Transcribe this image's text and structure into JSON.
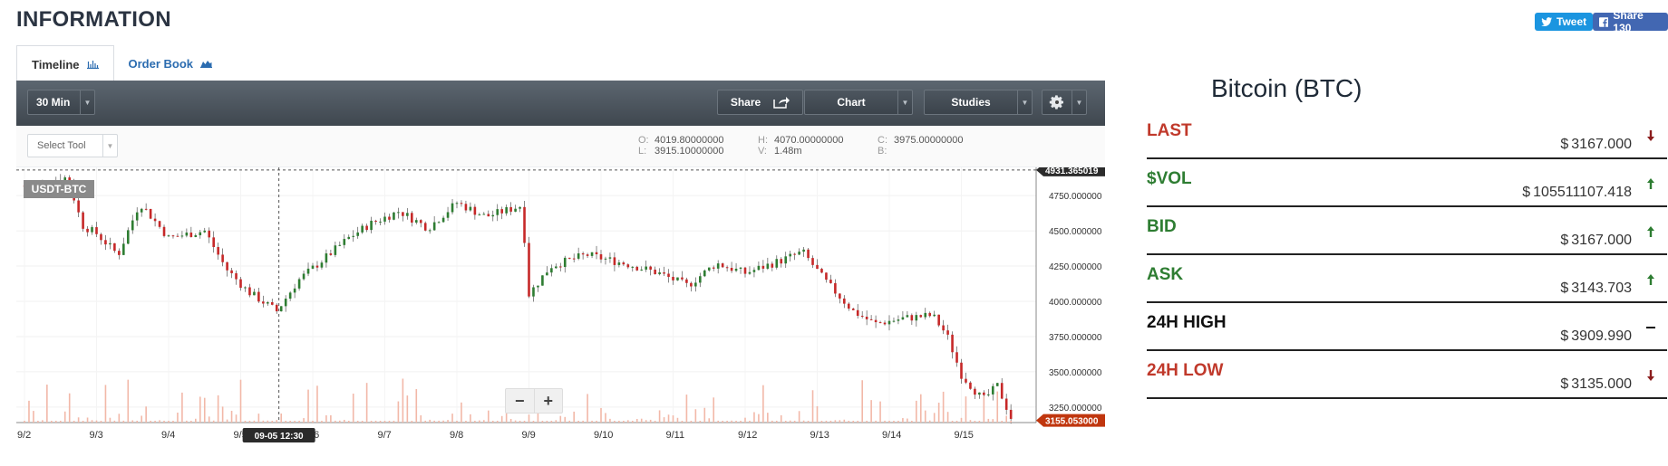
{
  "header": {
    "title": "INFORMATION"
  },
  "social": {
    "tweet": "Tweet",
    "share": "Share 130"
  },
  "tabs": [
    {
      "label": "Timeline",
      "active": true
    },
    {
      "label": "Order Book",
      "active": false
    }
  ],
  "toolbar": {
    "interval": "30 Min",
    "share": "Share",
    "chart": "Chart",
    "studies": "Studies"
  },
  "chart_toolbar": {
    "select_tool": "Select Tool",
    "ohlc": {
      "O": "4019.80000000",
      "H": "4070.00000000",
      "C": "3975.00000000",
      "L": "3915.10000000",
      "V": "1.48m",
      "B": ""
    }
  },
  "chart_data": {
    "type": "candlestick",
    "symbol": "USDT-BTC",
    "x_ticks": [
      "9/2",
      "9/3",
      "9/4",
      "9/5",
      "9/6",
      "9/7",
      "9/8",
      "9/9",
      "9/10",
      "9/11",
      "9/12",
      "9/13",
      "9/14",
      "9/15"
    ],
    "y_ticks": [
      "4750.000000",
      "4500.000000",
      "4250.000000",
      "4000.000000",
      "3750.000000",
      "3500.000000",
      "3250.000000"
    ],
    "ylim": [
      3140,
      4950
    ],
    "crosshair_label": "09-05 12:30",
    "high_marker": "4931.365019",
    "last_marker": "3155.053000",
    "close_keypoints": [
      [
        "9/2",
        4820
      ],
      [
        "9/2.6",
        4880
      ],
      [
        "9/2.8",
        4540
      ],
      [
        "9/3",
        4480
      ],
      [
        "9/3.3",
        4330
      ],
      [
        "9/3.6",
        4700
      ],
      [
        "9/4",
        4450
      ],
      [
        "9/4.5",
        4500
      ],
      [
        "9/4.8",
        4230
      ],
      [
        "9/5.1",
        4070
      ],
      [
        "9/5.5",
        3930
      ],
      [
        "9/5.8",
        4150
      ],
      [
        "9/6.2",
        4320
      ],
      [
        "9/6.5",
        4450
      ],
      [
        "9/6.8",
        4550
      ],
      [
        "9/7.2",
        4640
      ],
      [
        "9/7.6",
        4520
      ],
      [
        "9/8",
        4700
      ],
      [
        "9/8.4",
        4600
      ],
      [
        "9/8.9",
        4680
      ],
      [
        "9/9",
        4050
      ],
      [
        "9/9.3",
        4250
      ],
      [
        "9/9.8",
        4330
      ],
      [
        "9/10.4",
        4260
      ],
      [
        "9/10.8",
        4200
      ],
      [
        "9/11.2",
        4110
      ],
      [
        "9/11.6",
        4270
      ],
      [
        "9/12",
        4200
      ],
      [
        "9/12.5",
        4290
      ],
      [
        "9/12.8",
        4350
      ],
      [
        "9/13.1",
        4150
      ],
      [
        "9/13.5",
        3930
      ],
      [
        "9/13.8",
        3840
      ],
      [
        "9/14.2",
        3880
      ],
      [
        "9/14.6",
        3900
      ],
      [
        "9/14.8",
        3760
      ],
      [
        "9/15",
        3480
      ],
      [
        "9/15.3",
        3300
      ],
      [
        "9/15.5",
        3400
      ],
      [
        "9/15.7",
        3160
      ]
    ]
  },
  "info": {
    "title": "Bitcoin (BTC)",
    "rows": [
      {
        "label": "LAST",
        "currency": "$",
        "value": "3167.000",
        "trend": "down",
        "color": "#c0392b"
      },
      {
        "label": "$VOL",
        "currency": "$",
        "value": "105511107.418",
        "trend": "up",
        "color": "#2e7d32"
      },
      {
        "label": "BID",
        "currency": "$",
        "value": "3167.000",
        "trend": "up",
        "color": "#2e7d32"
      },
      {
        "label": "ASK",
        "currency": "$",
        "value": "3143.703",
        "trend": "up",
        "color": "#2e7d32"
      },
      {
        "label": "24H HIGH",
        "currency": "$",
        "value": "3909.990",
        "trend": "flat",
        "color": "#111111"
      },
      {
        "label": "24H LOW",
        "currency": "$",
        "value": "3135.000",
        "trend": "down",
        "color": "#c0392b"
      }
    ]
  }
}
